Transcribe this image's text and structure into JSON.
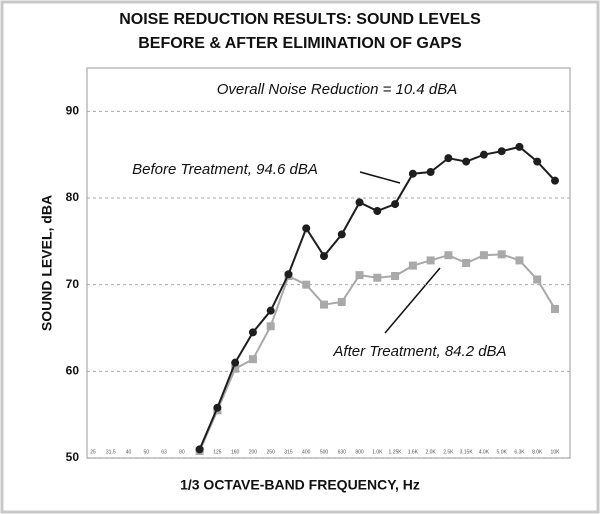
{
  "chart_data": {
    "type": "line",
    "title": [
      "NOISE REDUCTION RESULTS: SOUND LEVELS",
      "BEFORE & AFTER ELIMINATION OF GAPS"
    ],
    "x_label": "1/3 OCTAVE-BAND FREQUENCY, Hz",
    "y_label": "SOUND LEVEL, dBA",
    "annotations": [
      "Overall Noise Reduction = 10.4 dBA",
      "Before Treatment, 94.6 dBA",
      "After Treatment, 84.2 dBA"
    ],
    "categories": [
      "25",
      "31.5",
      "40",
      "50",
      "63",
      "80",
      "100",
      "125",
      "160",
      "200",
      "250",
      "315",
      "400",
      "500",
      "630",
      "800",
      "1.0K",
      "1.25K",
      "1.6K",
      "2.0K",
      "2.5K",
      "3.15K",
      "4.0K",
      "5.0K",
      "6.3K",
      "8.0K",
      "10K"
    ],
    "series": [
      {
        "color": "#1e1e1e",
        "marker": "circle",
        "values": [
          null,
          null,
          null,
          null,
          null,
          null,
          51,
          55.8,
          61,
          64.5,
          67,
          71.2,
          76.5,
          73.3,
          75.8,
          79.5,
          78.5,
          79.3,
          82.8,
          83,
          84.6,
          84.2,
          85,
          85.4,
          85.9,
          84.2,
          82
        ]
      },
      {
        "color": "#a9a9a9",
        "marker": "square",
        "values": [
          null,
          null,
          null,
          null,
          null,
          null,
          50.8,
          55.5,
          60.3,
          61.4,
          65.2,
          71,
          70,
          67.7,
          68,
          71.1,
          70.8,
          71,
          72.2,
          72.8,
          73.4,
          72.5,
          73.4,
          73.5,
          72.8,
          70.6,
          67.2
        ]
      }
    ],
    "ylim": [
      50,
      95
    ],
    "yticks": [
      50,
      60,
      70,
      80,
      90
    ],
    "grid": true
  }
}
